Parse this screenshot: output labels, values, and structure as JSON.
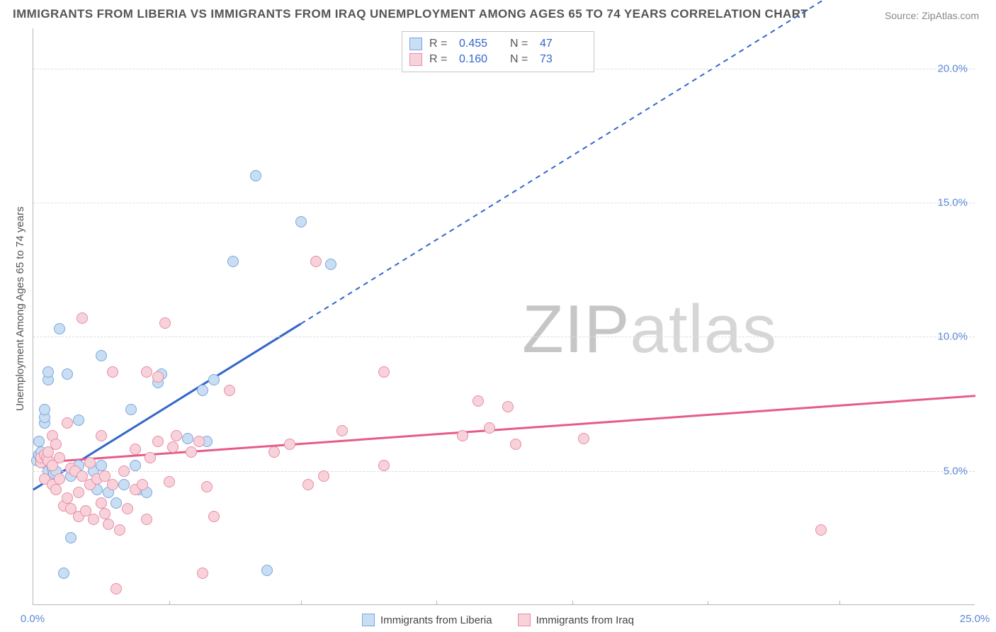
{
  "title": "IMMIGRANTS FROM LIBERIA VS IMMIGRANTS FROM IRAQ UNEMPLOYMENT AMONG AGES 65 TO 74 YEARS CORRELATION CHART",
  "source_label": "Source:",
  "source_value": "ZipAtlas.com",
  "ylabel": "Unemployment Among Ages 65 to 74 years",
  "watermark_a": "ZIP",
  "watermark_b": "atlas",
  "chart": {
    "type": "scatter",
    "background_color": "#ffffff",
    "grid_color": "#dcdcdc",
    "axis_color": "#b6b6b6",
    "tick_label_color": "#5b88d6",
    "xlim": [
      0,
      25
    ],
    "ylim": [
      0,
      21.5
    ],
    "yticks": [
      5,
      10,
      15,
      20
    ],
    "ytick_labels": [
      "5.0%",
      "10.0%",
      "15.0%",
      "20.0%"
    ],
    "xticks": [
      0,
      25
    ],
    "xtick_labels": [
      "0.0%",
      "25.0%"
    ],
    "x_minor_ticks": [
      3.6,
      7.1,
      10.7,
      14.3,
      17.9,
      21.4
    ],
    "series": [
      {
        "name": "Immigrants from Liberia",
        "fill": "#c9ddf3",
        "stroke": "#7aa8dd",
        "line_color": "#3366cc",
        "R": "0.455",
        "N": "47",
        "regression": {
          "x1": 0,
          "y1": 4.3,
          "x2": 7.0,
          "y2": 10.4,
          "extend_x2": 24.0,
          "extend_y2": 25.2,
          "solid_max_x": 7.1
        },
        "points": [
          [
            0.1,
            5.4
          ],
          [
            0.15,
            5.6
          ],
          [
            0.15,
            6.1
          ],
          [
            0.2,
            5.4
          ],
          [
            0.2,
            5.7
          ],
          [
            0.25,
            5.3
          ],
          [
            0.25,
            5.5
          ],
          [
            0.3,
            6.8
          ],
          [
            0.3,
            7.0
          ],
          [
            0.3,
            7.3
          ],
          [
            0.35,
            5.5
          ],
          [
            0.4,
            5.0
          ],
          [
            0.4,
            8.4
          ],
          [
            0.4,
            8.7
          ],
          [
            0.5,
            4.8
          ],
          [
            0.5,
            5.1
          ],
          [
            0.55,
            4.9
          ],
          [
            0.6,
            5.0
          ],
          [
            0.7,
            10.3
          ],
          [
            0.8,
            1.2
          ],
          [
            0.9,
            8.6
          ],
          [
            1.0,
            2.5
          ],
          [
            1.0,
            4.8
          ],
          [
            1.2,
            5.2
          ],
          [
            1.2,
            6.9
          ],
          [
            1.6,
            5.0
          ],
          [
            1.7,
            4.3
          ],
          [
            1.8,
            5.2
          ],
          [
            1.8,
            9.3
          ],
          [
            2.0,
            4.2
          ],
          [
            2.2,
            3.8
          ],
          [
            2.4,
            4.5
          ],
          [
            2.6,
            7.3
          ],
          [
            2.7,
            5.2
          ],
          [
            2.8,
            4.3
          ],
          [
            3.0,
            4.2
          ],
          [
            3.3,
            8.3
          ],
          [
            3.4,
            8.6
          ],
          [
            4.1,
            6.2
          ],
          [
            4.5,
            8.0
          ],
          [
            4.6,
            6.1
          ],
          [
            5.3,
            12.8
          ],
          [
            5.9,
            16.0
          ],
          [
            6.2,
            1.3
          ],
          [
            7.1,
            14.3
          ],
          [
            7.9,
            12.7
          ],
          [
            4.8,
            8.4
          ]
        ]
      },
      {
        "name": "Immigrants from Iraq",
        "fill": "#f8d2db",
        "stroke": "#e88ca4",
        "line_color": "#e75b87",
        "R": "0.160",
        "N": "73",
        "regression": {
          "x1": 0,
          "y1": 5.3,
          "x2": 25,
          "y2": 7.8,
          "solid_max_x": 25
        },
        "points": [
          [
            0.2,
            5.3
          ],
          [
            0.2,
            5.5
          ],
          [
            0.3,
            4.7
          ],
          [
            0.3,
            5.6
          ],
          [
            0.35,
            5.5
          ],
          [
            0.4,
            5.4
          ],
          [
            0.4,
            5.7
          ],
          [
            0.5,
            6.3
          ],
          [
            0.5,
            4.5
          ],
          [
            0.5,
            5.2
          ],
          [
            0.6,
            4.3
          ],
          [
            0.6,
            6.0
          ],
          [
            0.7,
            4.7
          ],
          [
            0.7,
            5.5
          ],
          [
            0.8,
            3.7
          ],
          [
            0.9,
            4.0
          ],
          [
            0.9,
            6.8
          ],
          [
            1.0,
            3.6
          ],
          [
            1.0,
            5.1
          ],
          [
            1.1,
            5.0
          ],
          [
            1.2,
            3.3
          ],
          [
            1.2,
            4.2
          ],
          [
            1.3,
            4.8
          ],
          [
            1.3,
            10.7
          ],
          [
            1.4,
            3.5
          ],
          [
            1.5,
            4.5
          ],
          [
            1.5,
            5.3
          ],
          [
            1.6,
            3.2
          ],
          [
            1.7,
            4.7
          ],
          [
            1.8,
            3.8
          ],
          [
            1.8,
            6.3
          ],
          [
            1.9,
            3.4
          ],
          [
            1.9,
            4.8
          ],
          [
            2.0,
            3.0
          ],
          [
            2.1,
            4.5
          ],
          [
            2.1,
            8.7
          ],
          [
            2.2,
            0.6
          ],
          [
            2.3,
            2.8
          ],
          [
            2.4,
            5.0
          ],
          [
            2.5,
            3.6
          ],
          [
            2.7,
            4.3
          ],
          [
            2.7,
            5.8
          ],
          [
            2.9,
            4.5
          ],
          [
            3.0,
            3.2
          ],
          [
            3.0,
            8.7
          ],
          [
            3.1,
            5.5
          ],
          [
            3.3,
            6.1
          ],
          [
            3.3,
            8.5
          ],
          [
            3.5,
            10.5
          ],
          [
            3.6,
            4.6
          ],
          [
            3.7,
            5.9
          ],
          [
            3.8,
            6.3
          ],
          [
            4.2,
            5.7
          ],
          [
            4.4,
            6.1
          ],
          [
            4.5,
            1.2
          ],
          [
            4.6,
            4.4
          ],
          [
            5.2,
            8.0
          ],
          [
            6.4,
            5.7
          ],
          [
            7.3,
            4.5
          ],
          [
            7.5,
            12.8
          ],
          [
            7.7,
            4.8
          ],
          [
            8.2,
            6.5
          ],
          [
            9.3,
            8.7
          ],
          [
            9.3,
            5.2
          ],
          [
            11.4,
            6.3
          ],
          [
            11.8,
            7.6
          ],
          [
            12.1,
            6.6
          ],
          [
            12.6,
            7.4
          ],
          [
            12.8,
            6.0
          ],
          [
            14.6,
            6.2
          ],
          [
            20.9,
            2.8
          ],
          [
            4.8,
            3.3
          ],
          [
            6.8,
            6.0
          ]
        ]
      }
    ]
  },
  "legend_bottom": [
    {
      "label": "Immigrants from Liberia",
      "fill": "#c9ddf3",
      "stroke": "#7aa8dd"
    },
    {
      "label": "Immigrants from Iraq",
      "fill": "#f8d2db",
      "stroke": "#e88ca4"
    }
  ]
}
